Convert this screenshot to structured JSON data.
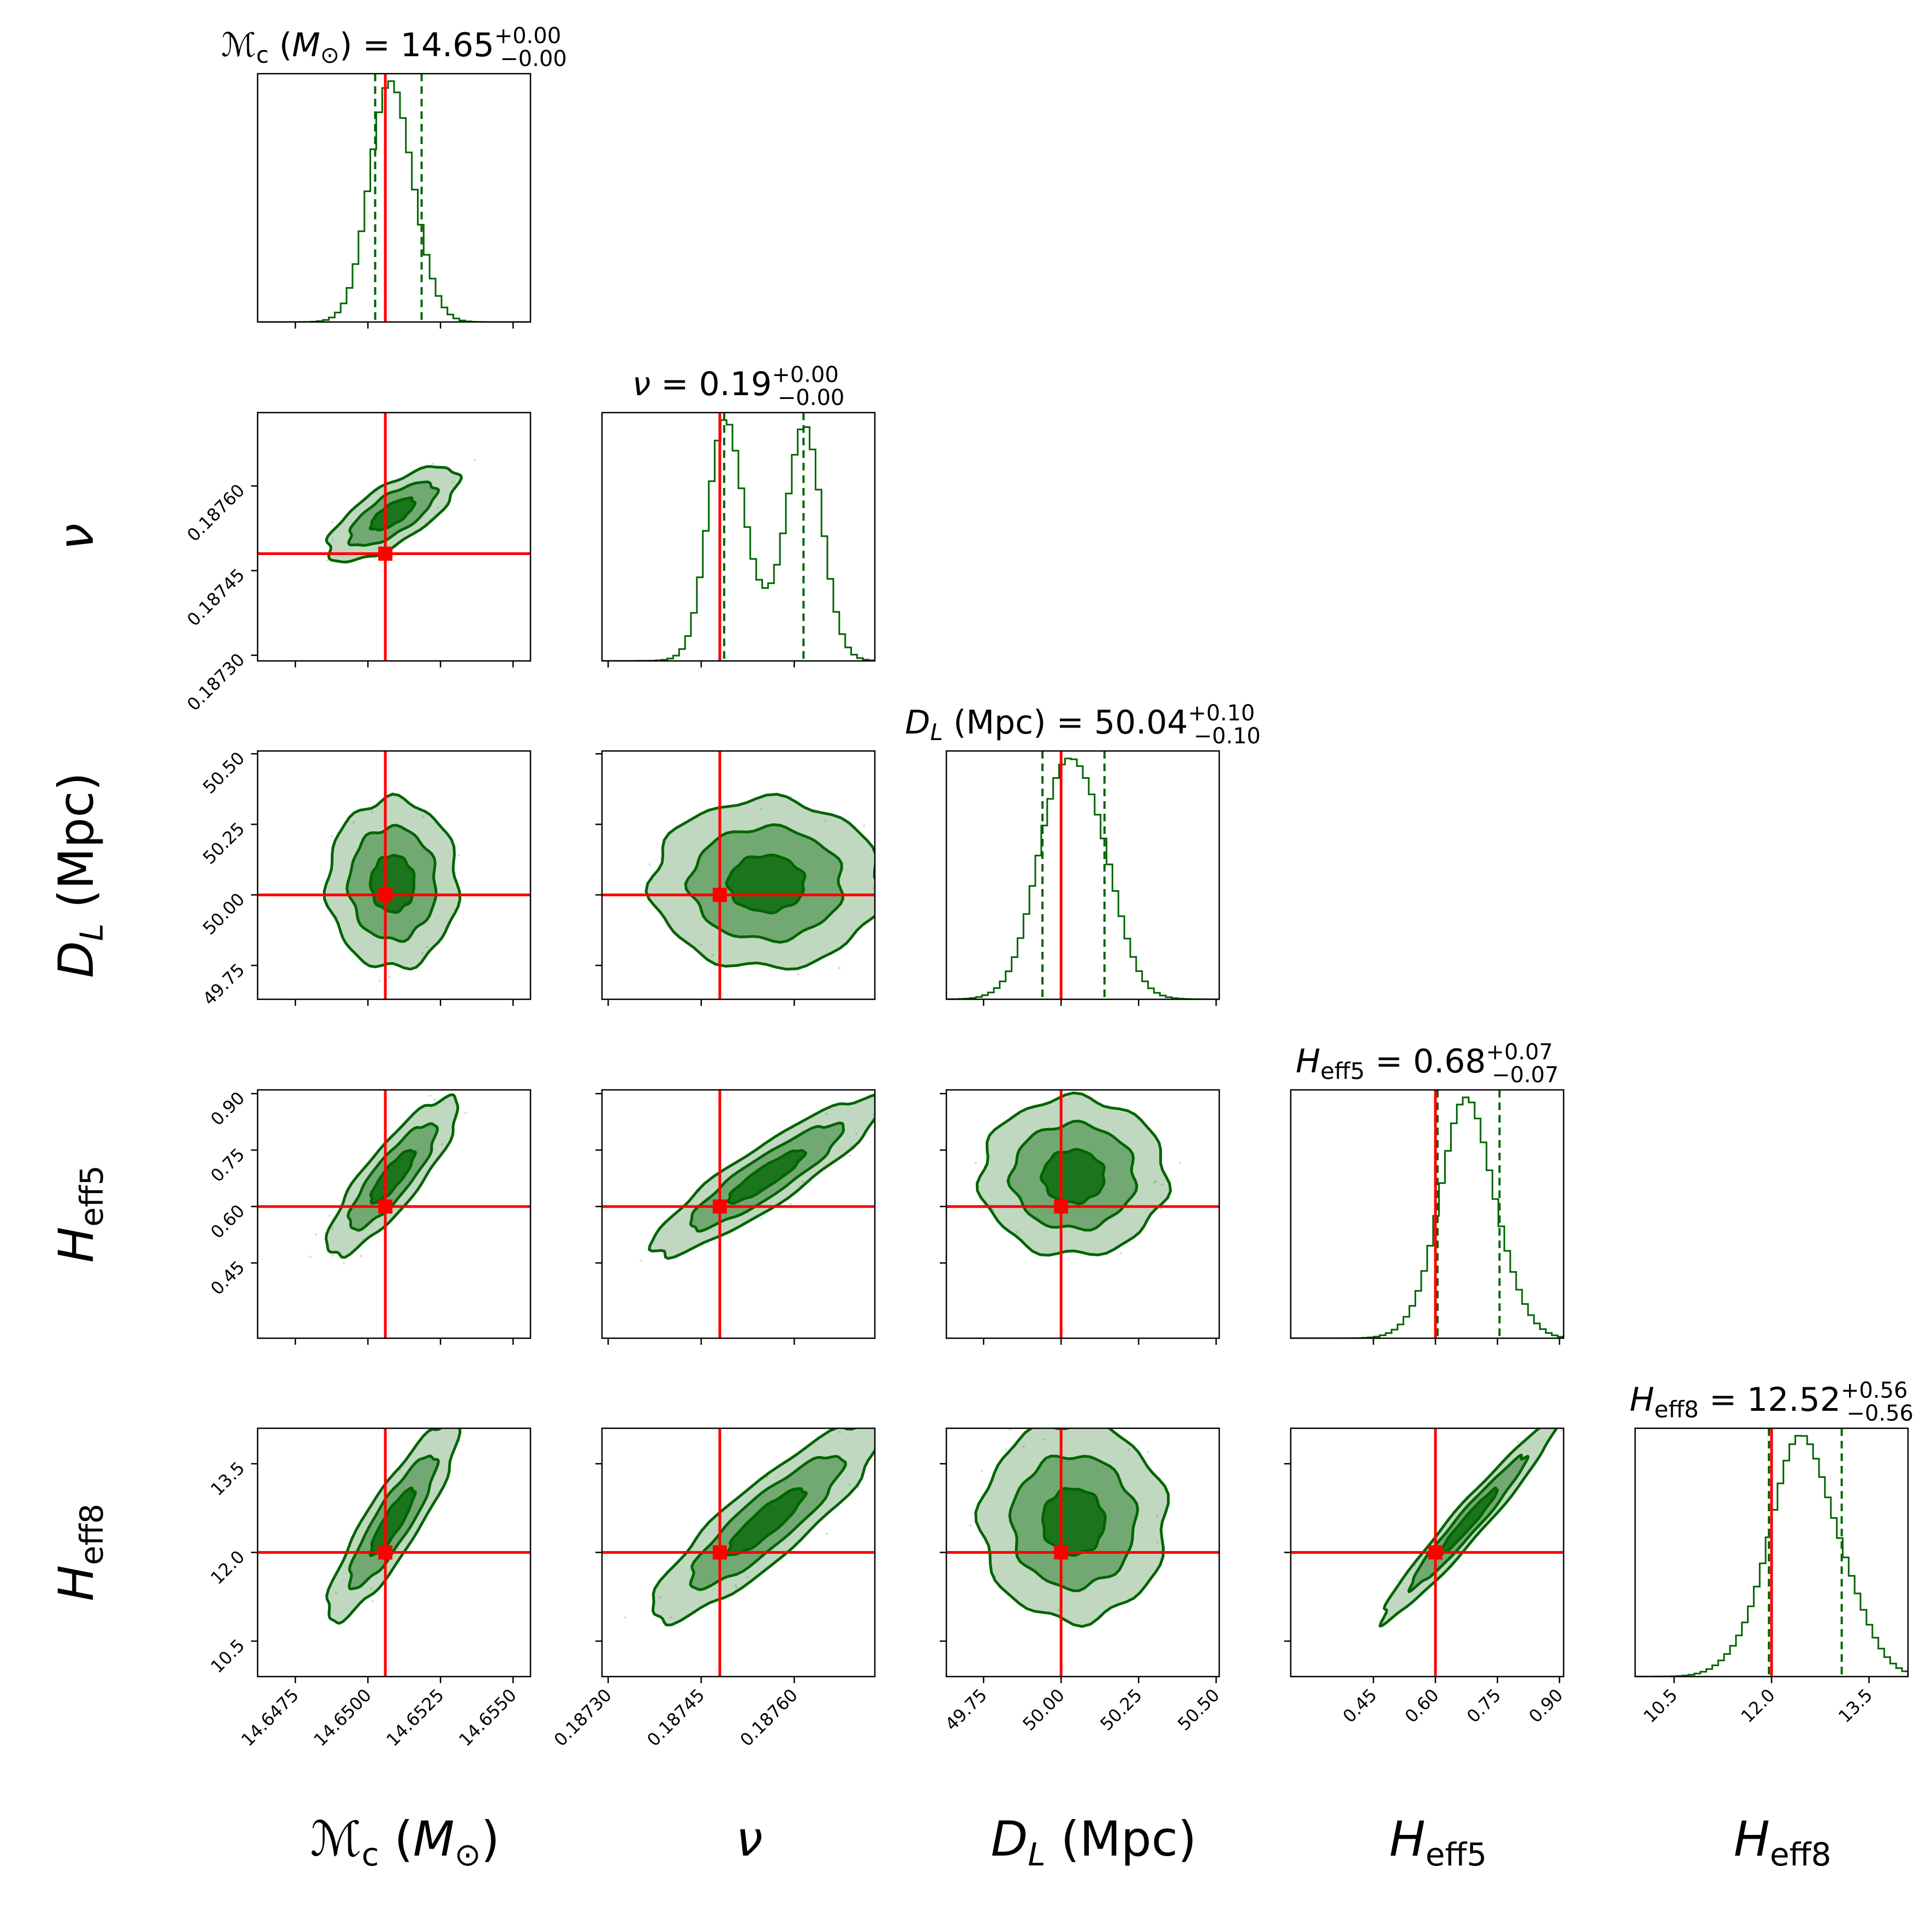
{
  "chart_data": {
    "type": "corner",
    "colors": {
      "posterior": "#006400",
      "truth": "#ff0000",
      "frame": "#000000"
    },
    "contour_levels": [
      "1-sigma",
      "2-sigma",
      "3-sigma"
    ],
    "parameters": [
      {
        "key": "Mc",
        "label_main": "ℳ",
        "label_sub": "c",
        "label_rest": " (M",
        "label_rest_sub": "⊙",
        "label_close": ")",
        "title_prefix": "ℳ",
        "title_prefix_sub": "c",
        "title_mid": " (M",
        "title_mid_sub": "⊙",
        "title_tail": ") = ",
        "median_text": "14.65",
        "err_plus": "+0.00",
        "err_minus": "−0.00",
        "median": 14.65085,
        "q16": 14.65025,
        "q84": 14.65185,
        "truth": 14.6506,
        "sigma": 0.00075,
        "range": [
          14.6462,
          14.6556
        ],
        "ticks": [
          14.6475,
          14.65,
          14.6525,
          14.655
        ],
        "tick_labels": [
          "14.6475",
          "14.6500",
          "14.6525",
          "14.6550"
        ]
      },
      {
        "key": "nu",
        "label_main": "ν",
        "title_prefix": "ν",
        "title_tail": " = ",
        "median_text": "0.19",
        "err_plus": "+0.00",
        "err_minus": "−0.00",
        "median": 0.18755,
        "q16": 0.187487,
        "q84": 0.187615,
        "truth": 0.18748,
        "bimodal": [
          0.18749,
          0.18762
        ],
        "sigma": 2.8e-05,
        "range": [
          0.18729,
          0.18773
        ],
        "ticks": [
          0.1873,
          0.18745,
          0.1876
        ],
        "tick_labels": [
          "0.18730",
          "0.18745",
          "0.18760"
        ]
      },
      {
        "key": "DL",
        "label_main": "D",
        "label_sub": "L",
        "label_rest": " (Mpc)",
        "title_prefix": "D",
        "title_prefix_sub": "L",
        "title_tail": " (Mpc) = ",
        "median_text": "50.04",
        "err_plus": "+0.10",
        "err_minus": "−0.10",
        "median": 50.04,
        "q16": 49.94,
        "q84": 50.14,
        "truth": 50.0,
        "sigma": 0.1,
        "range": [
          49.63,
          50.51
        ],
        "ticks": [
          49.75,
          50.0,
          50.25,
          50.5
        ],
        "tick_labels": [
          "49.75",
          "50.00",
          "50.25",
          "50.50"
        ]
      },
      {
        "key": "Heff5",
        "label_main": "H",
        "label_sub": "eff5",
        "title_prefix": "H",
        "title_prefix_sub": "eff5",
        "title_tail": " = ",
        "median_text": "0.68",
        "err_plus": "+0.07",
        "err_minus": "−0.07",
        "median": 0.68,
        "q16": 0.605,
        "q84": 0.755,
        "truth": 0.6,
        "sigma": 0.07,
        "range": [
          0.25,
          0.91
        ],
        "ticks": [
          0.45,
          0.6,
          0.75,
          0.9
        ],
        "tick_labels": [
          "0.45",
          "0.60",
          "0.75",
          "0.90"
        ]
      },
      {
        "key": "Heff8",
        "label_main": "H",
        "label_sub": "eff8",
        "title_prefix": "H",
        "title_prefix_sub": "eff8",
        "title_tail": " = ",
        "median_text": "12.52",
        "err_plus": "+0.56",
        "err_minus": "−0.56",
        "median": 12.52,
        "q16": 11.96,
        "q84": 13.08,
        "truth": 12.0,
        "sigma": 0.56,
        "range": [
          9.9,
          14.1
        ],
        "ticks": [
          10.5,
          12.0,
          13.5
        ],
        "tick_labels": [
          "10.5",
          "12.0",
          "13.5"
        ]
      }
    ],
    "correlations": {
      "1-0": 0.72,
      "2-0": 0.0,
      "2-1": 0.0,
      "3-0": 0.85,
      "3-1": 0.9,
      "3-2": 0.0,
      "4-0": 0.88,
      "4-1": 0.88,
      "4-2": 0.0,
      "4-3": 0.97
    }
  }
}
